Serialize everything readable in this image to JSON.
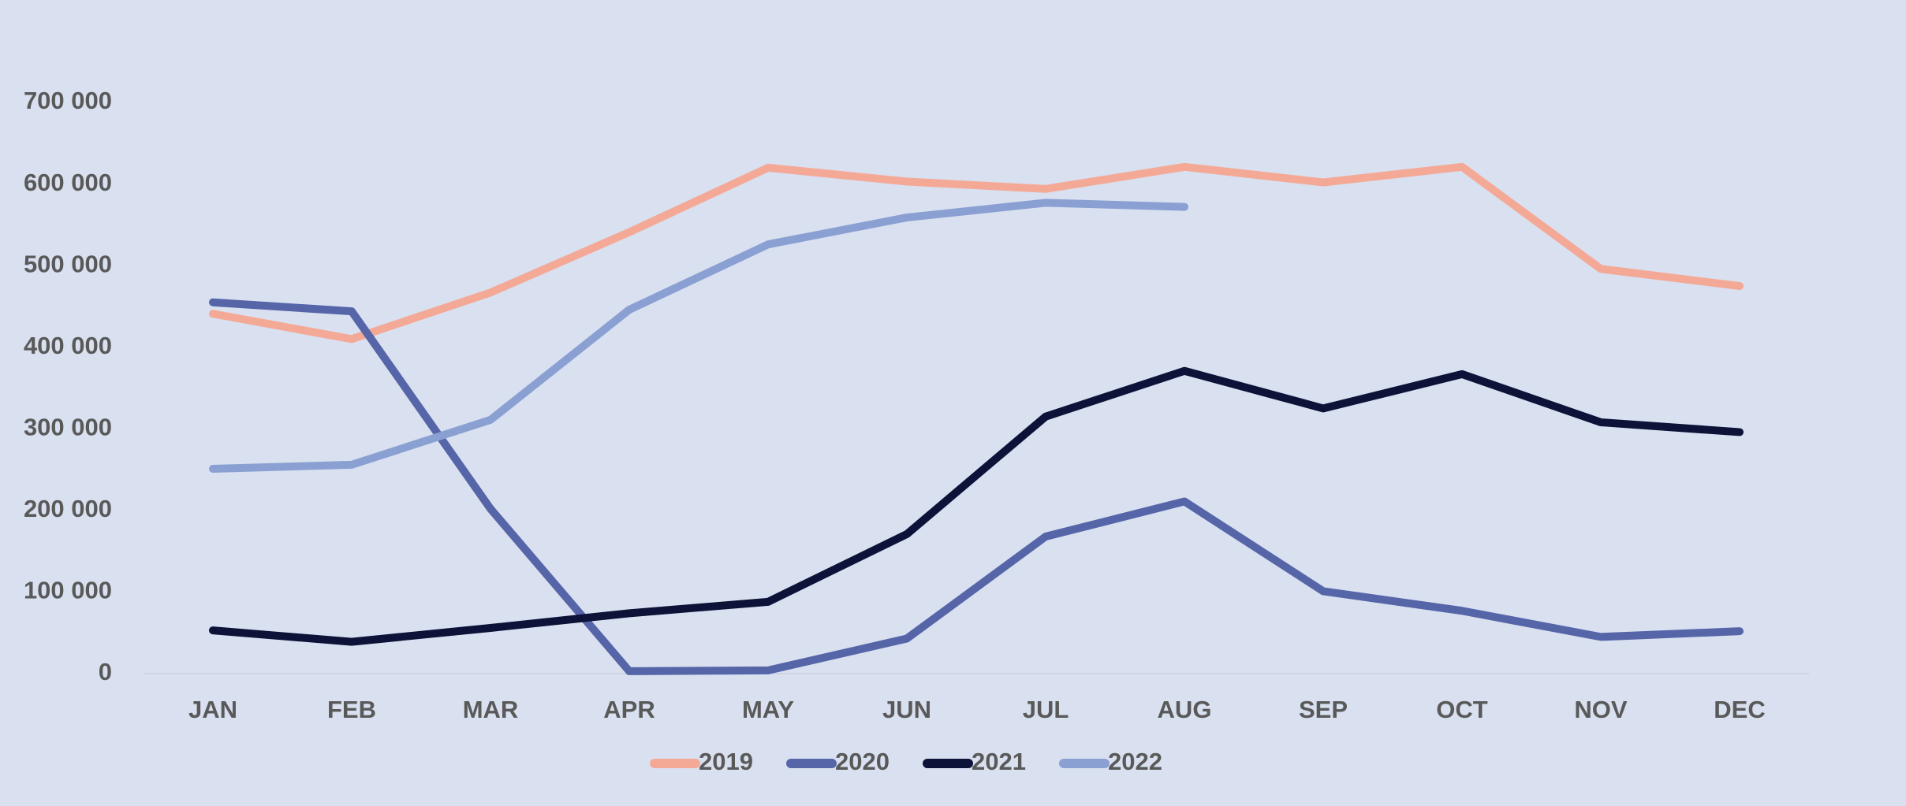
{
  "chart_data": {
    "type": "line",
    "categories": [
      "JAN",
      "FEB",
      "MAR",
      "APR",
      "MAY",
      "JUN",
      "JUL",
      "AUG",
      "SEP",
      "OCT",
      "NOV",
      "DEC"
    ],
    "series": [
      {
        "name": "2019",
        "color": "#f4a996",
        "values": [
          441000,
          410000,
          467000,
          541000,
          620000,
          603000,
          594000,
          621000,
          602000,
          621000,
          496000,
          475000
        ]
      },
      {
        "name": "2020",
        "color": "#5565a8",
        "values": [
          455000,
          444000,
          202000,
          3000,
          4000,
          43000,
          168000,
          211000,
          101000,
          77000,
          45000,
          52000
        ]
      },
      {
        "name": "2021",
        "color": "#0c1238",
        "values": [
          53000,
          39000,
          56000,
          74000,
          88000,
          171000,
          315000,
          371000,
          325000,
          367000,
          308000,
          296000
        ]
      },
      {
        "name": "2022",
        "color": "#8aa0d2",
        "values": [
          251000,
          256000,
          311000,
          446000,
          526000,
          559000,
          577000,
          572000,
          null,
          null,
          null,
          null
        ]
      }
    ],
    "ylim": [
      0,
      700000
    ],
    "yticks": [
      0,
      {
        "value": 100000,
        "label": "100 000"
      },
      {
        "value": 200000,
        "label": "200 000"
      },
      {
        "value": 300000,
        "label": "300 000"
      },
      {
        "value": 400000,
        "label": "400 000"
      },
      {
        "value": 500000,
        "label": "500 000"
      },
      {
        "value": 600000,
        "label": "600 000"
      },
      {
        "value": 700000,
        "label": "700 000"
      }
    ],
    "grid": false,
    "legend": "bottom"
  }
}
